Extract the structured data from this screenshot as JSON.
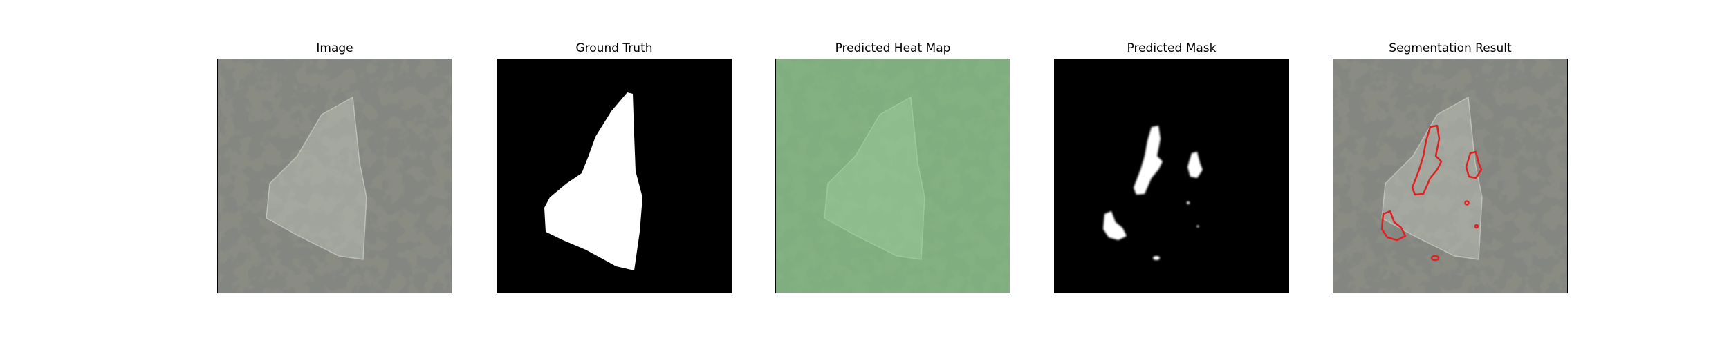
{
  "figure": {
    "panels": [
      {
        "title": "Image",
        "content": "original-image"
      },
      {
        "title": "Ground Truth",
        "content": "ground-truth-mask"
      },
      {
        "title": "Predicted Heat Map",
        "content": "heat-map-overlay"
      },
      {
        "title": "Predicted Mask",
        "content": "predicted-mask"
      },
      {
        "title": "Segmentation Result",
        "content": "segmentation-overlay"
      }
    ],
    "colors": {
      "texture_base": "#8a8c84",
      "texture_dark": "#3b3d38",
      "heat_tint": "#7fd07f",
      "mask_fg": "#ffffff",
      "mask_bg": "#000000",
      "contour": "#e02020"
    }
  }
}
